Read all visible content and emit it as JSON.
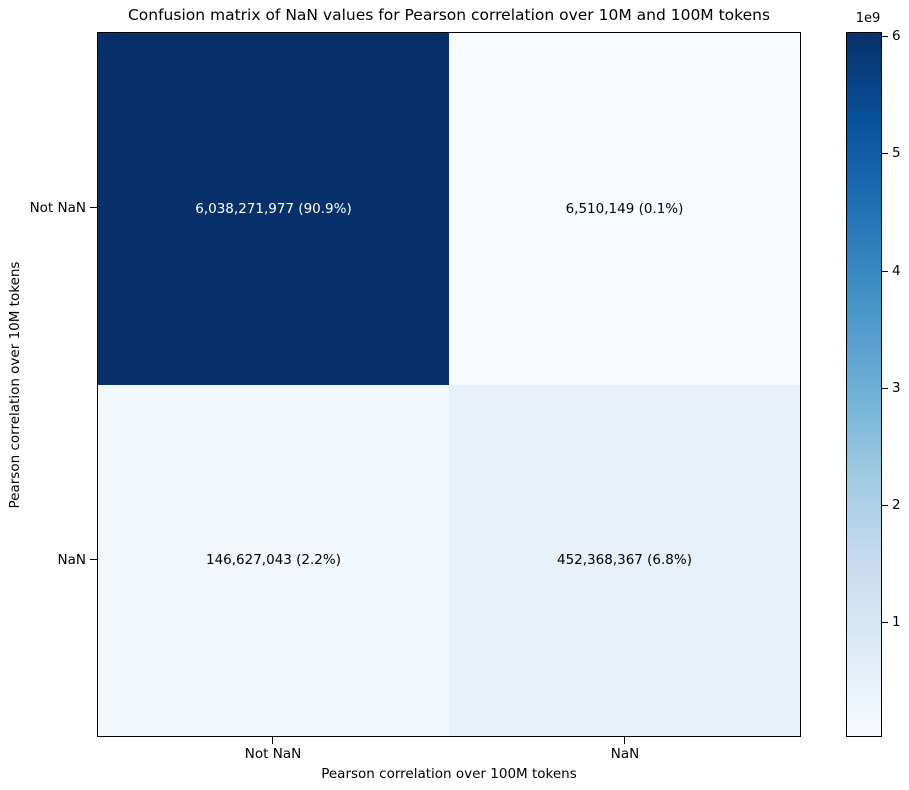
{
  "chart_data": {
    "type": "heatmap",
    "title": "Confusion matrix of NaN values for Pearson correlation over 10M and 100M tokens",
    "xlabel": "Pearson correlation over 100M tokens",
    "ylabel": "Pearson correlation over 10M tokens",
    "x_categories": [
      "Not NaN",
      "NaN"
    ],
    "y_categories": [
      "Not NaN",
      "NaN"
    ],
    "values": [
      [
        6038271977,
        6510149
      ],
      [
        146627043,
        452368367
      ]
    ],
    "percentages": [
      [
        90.9,
        0.1
      ],
      [
        2.2,
        6.8
      ]
    ],
    "cell_labels": [
      [
        "6,038,271,977 (90.9%)",
        "6,510,149 (0.1%)"
      ],
      [
        "146,627,043 (2.2%)",
        "452,368,367 (6.8%)"
      ]
    ],
    "colormap": "Blues",
    "vmin": 6510149,
    "vmax": 6038271977,
    "grid": false,
    "legend_position": "colorbar-right",
    "colorbar": {
      "offset_label": "1e9",
      "tick_labels": [
        "6",
        "5",
        "4",
        "3",
        "2",
        "1"
      ],
      "tick_values": [
        6000000000,
        5000000000,
        4000000000,
        3000000000,
        2000000000,
        1000000000
      ]
    }
  },
  "cells": [
    {
      "label": "6,038,271,977 (90.9%)",
      "bg": "#08306b",
      "fg": "#ffffff"
    },
    {
      "label": "6,510,149 (0.1%)",
      "bg": "#f7fbff",
      "fg": "#000000"
    },
    {
      "label": "146,627,043 (2.2%)",
      "bg": "#f2f7fc",
      "fg": "#000000"
    },
    {
      "label": "452,368,367 (6.8%)",
      "bg": "#e8f0fa",
      "fg": "#000000"
    }
  ],
  "colors": {
    "cmap_low": "#f7fbff",
    "cmap_high": "#08306b",
    "border": "#000000",
    "background": "#ffffff"
  }
}
